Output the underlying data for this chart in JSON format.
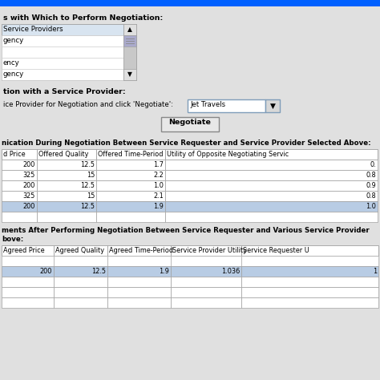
{
  "top_bar_color": "#0060ff",
  "panel_bg": "#e0e0e0",
  "white": "#ffffff",
  "section1_label": "s with Which to Perform Negotiation:",
  "listbox_header": "Service Providers",
  "listbox_items": [
    "gency",
    "",
    "ency",
    "gency"
  ],
  "section2_label": "tion with a Service Provider:",
  "dropdown_label": "ice Provider for Negotiation and click 'Negotiate':",
  "dropdown_value": "Jet Travels",
  "button_label": "Negotiate",
  "table1_section_label": "nication During Negotiation Between Service Requester and Service Provider Selected Above:",
  "table1_headers": [
    "d Price",
    "Offered Quality",
    "Offered Time-Period",
    "Utility of Opposite Negotiating Servic"
  ],
  "table1_rows": [
    [
      "200",
      "12.5",
      "1.7",
      "0."
    ],
    [
      "325",
      "15",
      "2.2",
      "0.8"
    ],
    [
      "200",
      "12.5",
      "1.0",
      "0.9"
    ],
    [
      "325",
      "15",
      "2.1",
      "0.8"
    ],
    [
      "200",
      "12.5",
      "1.9",
      "1.0"
    ]
  ],
  "table1_highlighted_row": 4,
  "table1_highlight_color": "#b8cce4",
  "table2_section_label": "ments After Performing Negotiation Between Service Requester and Various Service Provider",
  "table2_section_label2": "bove:",
  "table2_headers": [
    "Agreed Price",
    "Agreed Quality",
    "Agreed Time-Period",
    "Service Provider Utility",
    "Service Requester U"
  ],
  "table2_rows": [
    [
      "200",
      "12.5",
      "1.9",
      "1.036",
      "1"
    ],
    [
      "",
      "",
      "",
      "",
      ""
    ],
    [
      "",
      "",
      "",
      "",
      ""
    ],
    [
      "",
      "",
      "",
      "",
      ""
    ]
  ],
  "table2_highlighted_row": 0,
  "table2_highlight_color": "#b8cce4",
  "border_color": "#a0a0a0",
  "scrollbar_bg": "#d0d0d0",
  "listbox_header_bg": "#d8e4f0",
  "font_size": 6.2,
  "bold_font_size": 6.8,
  "dropdown_border": "#7f9db9"
}
